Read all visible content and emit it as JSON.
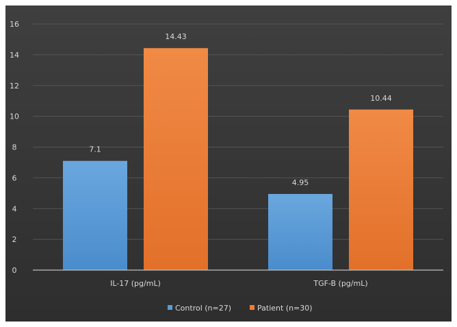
{
  "chart_data": {
    "type": "bar",
    "title": "",
    "xlabel": "",
    "ylabel": "",
    "ylim": [
      0,
      16
    ],
    "yticks": [
      0,
      2,
      4,
      6,
      8,
      10,
      12,
      14,
      16
    ],
    "grid": true,
    "legend_position": "bottom",
    "categories": [
      "IL-17 (pg/mL)",
      "TGF-B (pg/mL)"
    ],
    "series": [
      {
        "name": "Control (n=27)",
        "values": [
          7.1,
          4.95
        ],
        "labels": [
          "7.1",
          "4.95"
        ],
        "color": "#5b9bd5"
      },
      {
        "name": "Patient (n=30)",
        "values": [
          14.43,
          10.44
        ],
        "labels": [
          "14.43",
          "10.44"
        ],
        "color": "#ed7d31"
      }
    ],
    "colors": {
      "background": "#3b3b3b",
      "grid": "#555555",
      "axis": "#bfbfbf",
      "text": "#d9d9d9"
    }
  }
}
